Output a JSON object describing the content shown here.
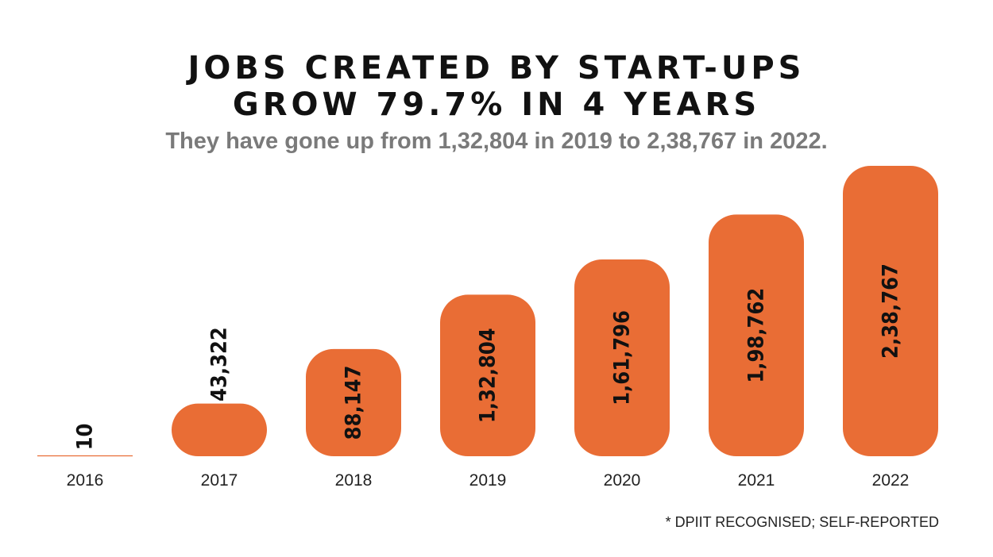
{
  "title_line1": "JOBS CREATED BY START-UPS",
  "title_line2": "GROW 79.7% IN 4 YEARS",
  "subtitle": "They have gone up from 1,32,804 in 2019 to 2,38,767 in 2022.",
  "footnote": "* DPIIT RECOGNISED; SELF-REPORTED",
  "chart_data": {
    "type": "bar",
    "title": "JOBS CREATED BY START-UPS GROW 79.7% IN 4 YEARS",
    "subtitle": "They have gone up from 1,32,804 in 2019 to 2,38,767 in 2022.",
    "categories": [
      "2016",
      "2017",
      "2018",
      "2019",
      "2020",
      "2021",
      "2022"
    ],
    "values": [
      10,
      43322,
      88147,
      132804,
      161796,
      198762,
      238767
    ],
    "data_labels": [
      "10",
      "43,322",
      "88,147",
      "1,32,804",
      "1,61,796",
      "1,98,762",
      "2,38,767"
    ],
    "xlabel": "",
    "ylabel": "",
    "ylim": [
      0,
      238767
    ],
    "grid": false,
    "bar_color": "#E96D35",
    "label_color": "#111111"
  }
}
